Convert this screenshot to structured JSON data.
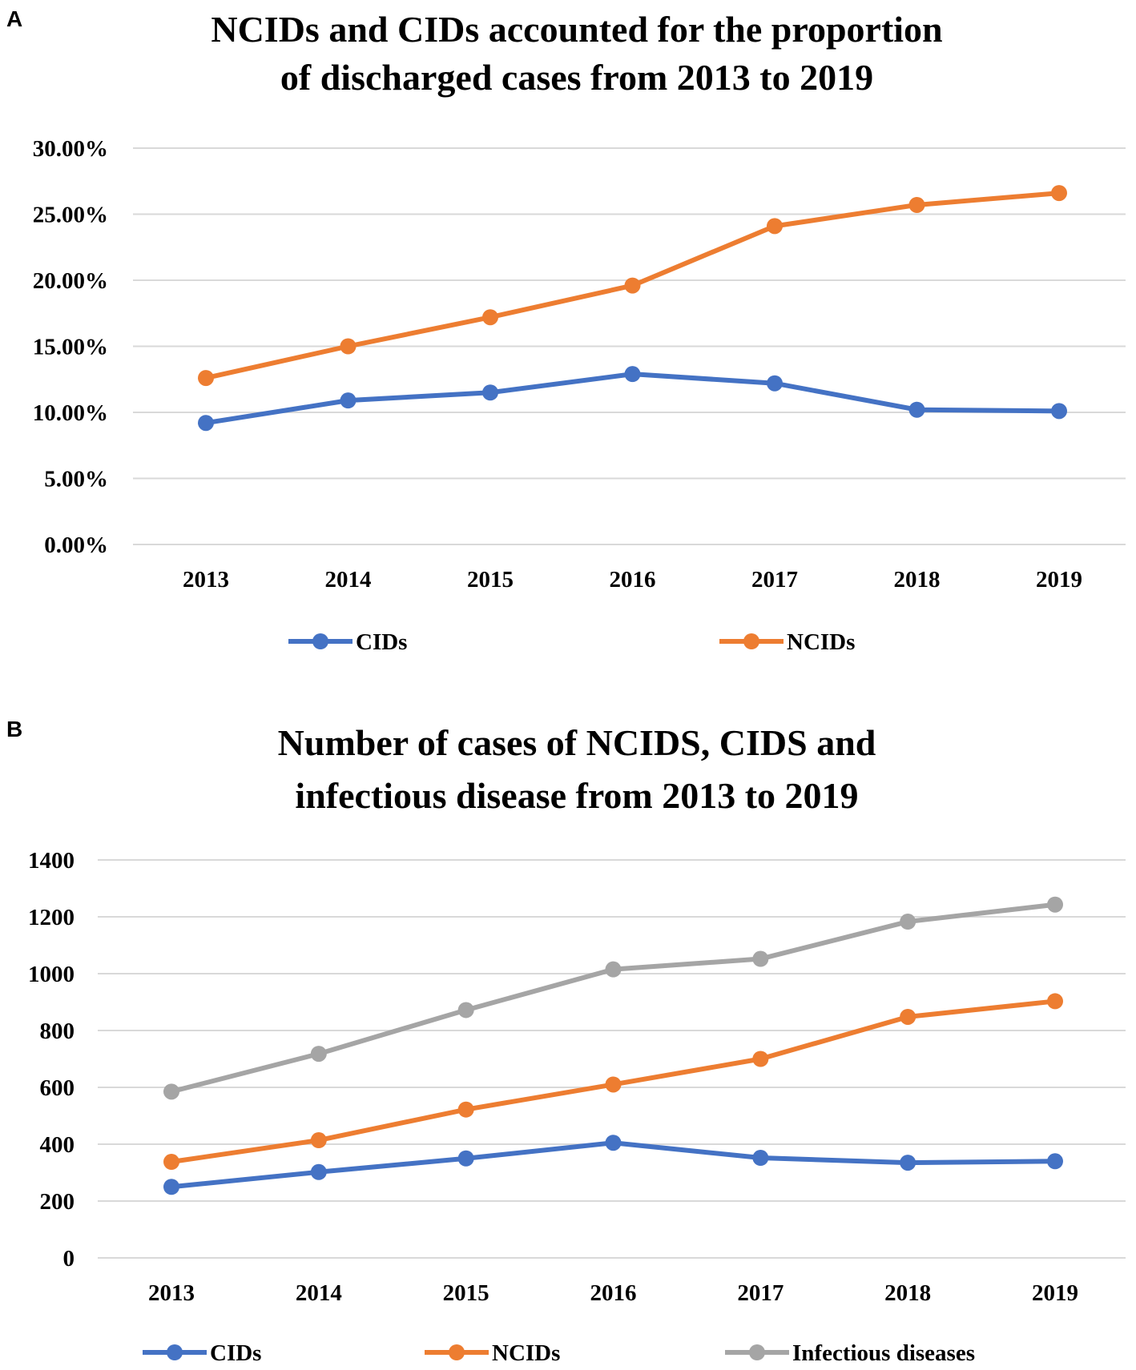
{
  "panels": [
    {
      "label": "A"
    },
    {
      "label": "B"
    }
  ],
  "chart_data": [
    {
      "type": "line",
      "title_lines": [
        "NCIDs and CIDs accounted for the proportion",
        "of discharged cases from 2013 to 2019"
      ],
      "categories": [
        "2013",
        "2014",
        "2015",
        "2016",
        "2017",
        "2018",
        "2019"
      ],
      "y_ticks": [
        "0.00%",
        "5.00%",
        "10.00%",
        "15.00%",
        "20.00%",
        "25.00%",
        "30.00%"
      ],
      "ylim": [
        0,
        30
      ],
      "grid": true,
      "legend_position": "bottom",
      "series": [
        {
          "name": "CIDs",
          "color": "#4472c4",
          "values": [
            9.2,
            10.9,
            11.5,
            12.9,
            12.2,
            10.2,
            10.1
          ]
        },
        {
          "name": "NCIDs",
          "color": "#ed7d31",
          "values": [
            12.6,
            15.0,
            17.2,
            19.6,
            24.1,
            25.7,
            26.6
          ]
        }
      ]
    },
    {
      "type": "line",
      "title_lines": [
        "Number of cases of NCIDS, CIDS and",
        "infectious disease from 2013 to 2019"
      ],
      "categories": [
        "2013",
        "2014",
        "2015",
        "2016",
        "2017",
        "2018",
        "2019"
      ],
      "y_ticks": [
        "0",
        "200",
        "400",
        "600",
        "800",
        "1000",
        "1200",
        "1400"
      ],
      "ylim": [
        0,
        1400
      ],
      "grid": true,
      "legend_position": "bottom",
      "series": [
        {
          "name": "CIDs",
          "color": "#4472c4",
          "values": [
            250,
            302,
            350,
            405,
            352,
            335,
            340
          ]
        },
        {
          "name": "NCIDs",
          "color": "#ed7d31",
          "values": [
            338,
            414,
            522,
            610,
            700,
            848,
            903
          ]
        },
        {
          "name": "Infectious diseases",
          "color": "#a5a5a5",
          "values": [
            585,
            718,
            872,
            1015,
            1052,
            1183,
            1243
          ]
        }
      ]
    }
  ]
}
